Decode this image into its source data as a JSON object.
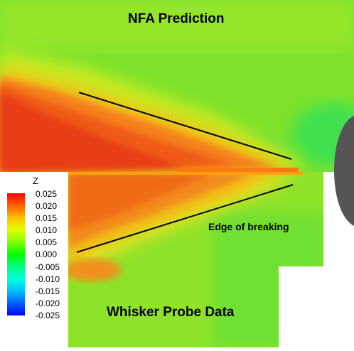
{
  "top_title": "NFA Prediction",
  "bottom_title": "Whisker Probe Data",
  "annotation": "Edge of breaking",
  "legend": {
    "variable": "Z",
    "ticks": [
      "0.025",
      "0.020",
      "0.015",
      "0.010",
      "0.005",
      "0.000",
      "-0.005",
      "-0.010",
      "-0.015",
      "-0.020",
      "-0.025"
    ],
    "colors": [
      "#ff0000",
      "#ff6000",
      "#ffc000",
      "#e0ff00",
      "#80ff00",
      "#00ff00",
      "#00ff80",
      "#00ffe0",
      "#00c0ff",
      "#0060ff",
      "#0000ff"
    ]
  }
}
